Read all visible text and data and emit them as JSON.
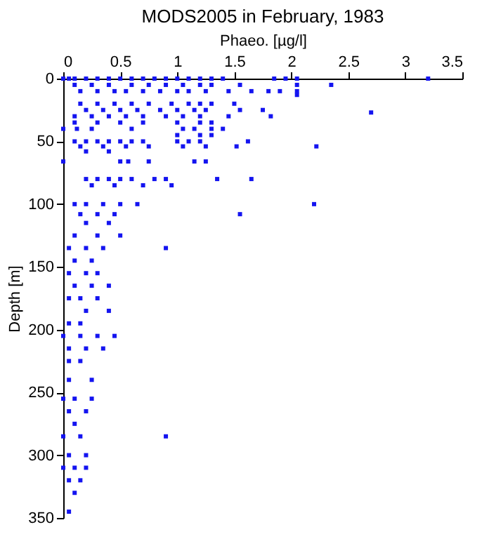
{
  "chart_data": {
    "type": "scatter",
    "title": "MODS2005 in February, 1983",
    "xlabel": "Phaeo. [µg/l]",
    "ylabel": "Depth [m]",
    "xlim": [
      0,
      3.5
    ],
    "xticks": [
      0,
      0.5,
      1,
      1.5,
      2,
      2.5,
      3,
      3.5
    ],
    "ylim": [
      350,
      0
    ],
    "yticks": [
      0,
      50,
      100,
      150,
      200,
      250,
      300,
      350
    ],
    "marker": "square",
    "legend": false,
    "grid": false,
    "series": [
      {
        "color": "#1414f0",
        "x": [
          0,
          0.05,
          0.1,
          0.2,
          0.3,
          0.4,
          0.5,
          0.6,
          0.7,
          0.8,
          0.9,
          1.0,
          1.1,
          1.2,
          1.3,
          1.4,
          1.85,
          1.95,
          2.05,
          3.2,
          0.1,
          0.25,
          0.4,
          0.6,
          0.75,
          0.9,
          1.05,
          1.2,
          1.3,
          1.55,
          2.05,
          2.35,
          0.15,
          0.3,
          0.45,
          0.55,
          0.7,
          0.85,
          1.0,
          1.1,
          1.25,
          1.45,
          1.65,
          1.8,
          1.9,
          2.05,
          2.05,
          0.15,
          0.3,
          0.45,
          0.6,
          0.75,
          0.95,
          1.1,
          1.2,
          1.3,
          1.5,
          0.2,
          0.35,
          0.5,
          0.65,
          0.85,
          1.0,
          1.15,
          1.25,
          1.55,
          1.75,
          2.7,
          0.1,
          0.25,
          0.4,
          0.55,
          0.7,
          0.9,
          1.05,
          1.2,
          1.45,
          1.82,
          0.1,
          0.3,
          0.5,
          0.7,
          1.0,
          1.2,
          1.3,
          0,
          0.12,
          0.25,
          0.6,
          1.05,
          1.15,
          1.3,
          1.4,
          1.0,
          1.2,
          1.3,
          0.1,
          0.2,
          0.3,
          0.4,
          0.5,
          0.6,
          0.7,
          1.0,
          1.1,
          1.2,
          1.62,
          0.15,
          0.35,
          0.55,
          0.75,
          1.05,
          1.25,
          1.52,
          2.22,
          0.2,
          0.4,
          0,
          0.5,
          0.57,
          0.75,
          1.15,
          1.25,
          0.2,
          0.3,
          0.4,
          0.5,
          0.6,
          0.8,
          0.9,
          1.35,
          1.65,
          0.25,
          0.45,
          0.7,
          0.95,
          0.1,
          0.2,
          0.35,
          0.5,
          0.65,
          2.2,
          0.15,
          0.3,
          0.45,
          1.55,
          0.2,
          0.4,
          0.1,
          0.3,
          0.5,
          0.05,
          0.2,
          0.35,
          0.9,
          0.1,
          0.25,
          0.05,
          0.2,
          0.3,
          0.1,
          0.25,
          0.4,
          0.05,
          0.15,
          0.3,
          0.2,
          0.4,
          0.05,
          0.15,
          0.0,
          0.15,
          0.3,
          0.45,
          0.05,
          0.2,
          0.35,
          0.05,
          0.15,
          0.05,
          0.25,
          0.0,
          0.1,
          0.25,
          0.05,
          0.2,
          0.1,
          0.0,
          0.15,
          0.9,
          0.05,
          0.2,
          0.0,
          0.1,
          0.2,
          0.05,
          0.15,
          0.1,
          0.05
        ],
        "values": [
          0,
          0,
          0,
          0,
          0,
          0,
          0,
          0,
          0,
          0,
          0,
          0,
          0,
          0,
          0,
          0,
          0,
          0,
          0,
          0,
          5,
          5,
          5,
          5,
          5,
          5,
          5,
          5,
          5,
          5,
          5,
          5,
          10,
          10,
          10,
          10,
          10,
          10,
          10,
          10,
          10,
          10,
          10,
          10,
          10,
          10,
          13,
          20,
          20,
          20,
          20,
          20,
          20,
          20,
          20,
          20,
          20,
          25,
          25,
          25,
          25,
          25,
          25,
          25,
          25,
          25,
          25,
          27,
          30,
          30,
          30,
          30,
          30,
          30,
          30,
          30,
          30,
          30,
          35,
          35,
          35,
          35,
          35,
          35,
          35,
          40,
          40,
          40,
          40,
          40,
          40,
          40,
          40,
          45,
          45,
          45,
          50,
          50,
          50,
          50,
          50,
          50,
          50,
          50,
          50,
          50,
          50,
          54,
          54,
          54,
          54,
          54,
          54,
          54,
          54,
          58,
          58,
          66,
          66,
          66,
          66,
          66,
          66,
          80,
          80,
          80,
          80,
          80,
          80,
          80,
          80,
          80,
          85,
          85,
          85,
          85,
          100,
          100,
          100,
          100,
          100,
          100,
          108,
          108,
          108,
          108,
          115,
          115,
          125,
          125,
          125,
          135,
          135,
          135,
          135,
          145,
          145,
          155,
          155,
          155,
          165,
          165,
          165,
          175,
          175,
          175,
          185,
          185,
          195,
          195,
          205,
          205,
          205,
          205,
          215,
          215,
          215,
          225,
          225,
          240,
          240,
          255,
          255,
          255,
          265,
          265,
          275,
          285,
          285,
          285,
          300,
          300,
          310,
          310,
          310,
          320,
          320,
          330,
          345
        ]
      }
    ]
  }
}
